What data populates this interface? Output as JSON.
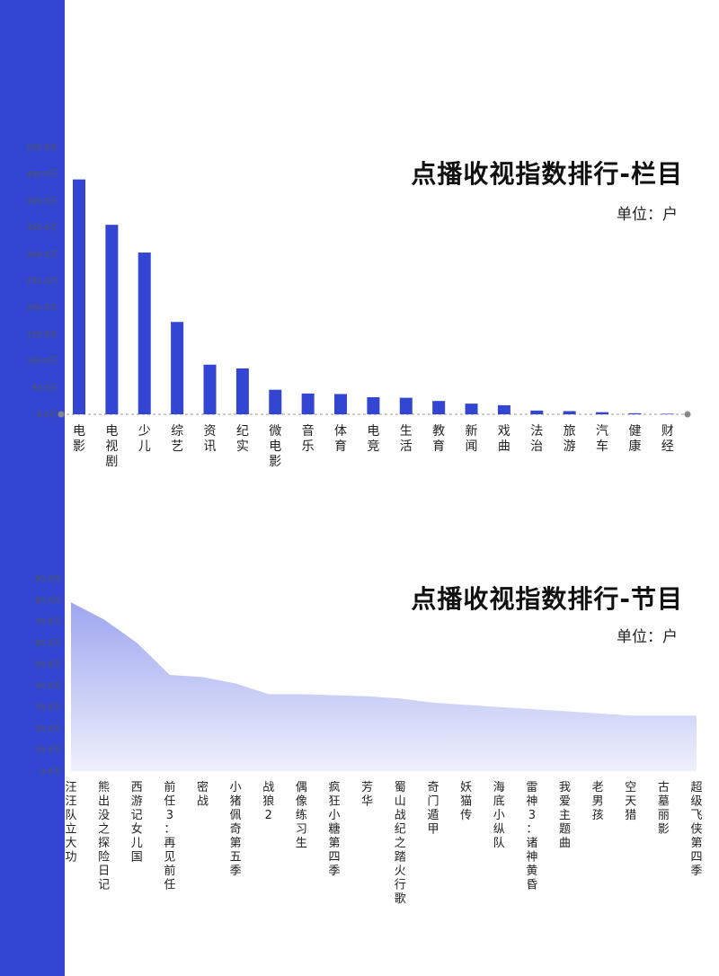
{
  "colors": {
    "sidebar": "#3346d3",
    "bar": "#3346d3",
    "area_top": "#9ea6ef",
    "area_bottom": "#eef0fc",
    "axis_text": "#555555",
    "cat_text": "#222222"
  },
  "chart_data": [
    {
      "type": "bar",
      "title": "点播收视指数排行-栏目",
      "unit": "单位：户",
      "yticks": [
        "500.0万",
        "450.0万",
        "400.0万",
        "350.0万",
        "300.0万",
        "250.0万",
        "200.0万",
        "150.0万",
        "100.0万",
        "50.0万",
        "0.0万"
      ],
      "ylim": [
        0,
        500
      ],
      "categories": [
        "电影",
        "电视剧",
        "少儿",
        "综艺",
        "资讯",
        "纪实",
        "微电影",
        "音乐",
        "体育",
        "电竞",
        "生活",
        "教育",
        "新闻",
        "戏曲",
        "法治",
        "旅游",
        "汽车",
        "健康",
        "财经"
      ],
      "values": [
        440,
        355,
        303,
        173,
        93,
        86,
        46,
        39,
        38,
        32,
        31,
        25,
        20,
        17,
        7,
        6,
        4,
        2,
        1
      ]
    },
    {
      "type": "area",
      "title": "点播收视指数排行-节目",
      "unit": "单位：户",
      "yticks": [
        "90.0万",
        "80.0万",
        "70.0万",
        "60.0万",
        "50.0万",
        "40.0万",
        "30.0万",
        "20.0万",
        "10.0万",
        "0.0万"
      ],
      "ylim": [
        0,
        90
      ],
      "categories": [
        "汪汪队立大功",
        "熊出没之探险日记",
        "西游记女儿国",
        "前任3：再见前任",
        "密战",
        "小猪佩奇第五季",
        "战狼2",
        "偶像练习生",
        "疯狂小糖第四季",
        "芳华",
        "蜀山战纪之踏火行歌",
        "奇门遁甲",
        "妖猫传",
        "海底小纵队",
        "雷神3：诸神黄昏",
        "我爱主题曲",
        "老男孩",
        "空天猎",
        "古墓丽影",
        "超级飞侠第四季"
      ],
      "values": [
        79,
        71,
        60,
        45,
        44,
        41,
        36,
        36,
        35.5,
        35,
        34,
        32,
        31,
        30,
        29,
        28,
        27,
        26,
        26,
        26
      ]
    }
  ]
}
